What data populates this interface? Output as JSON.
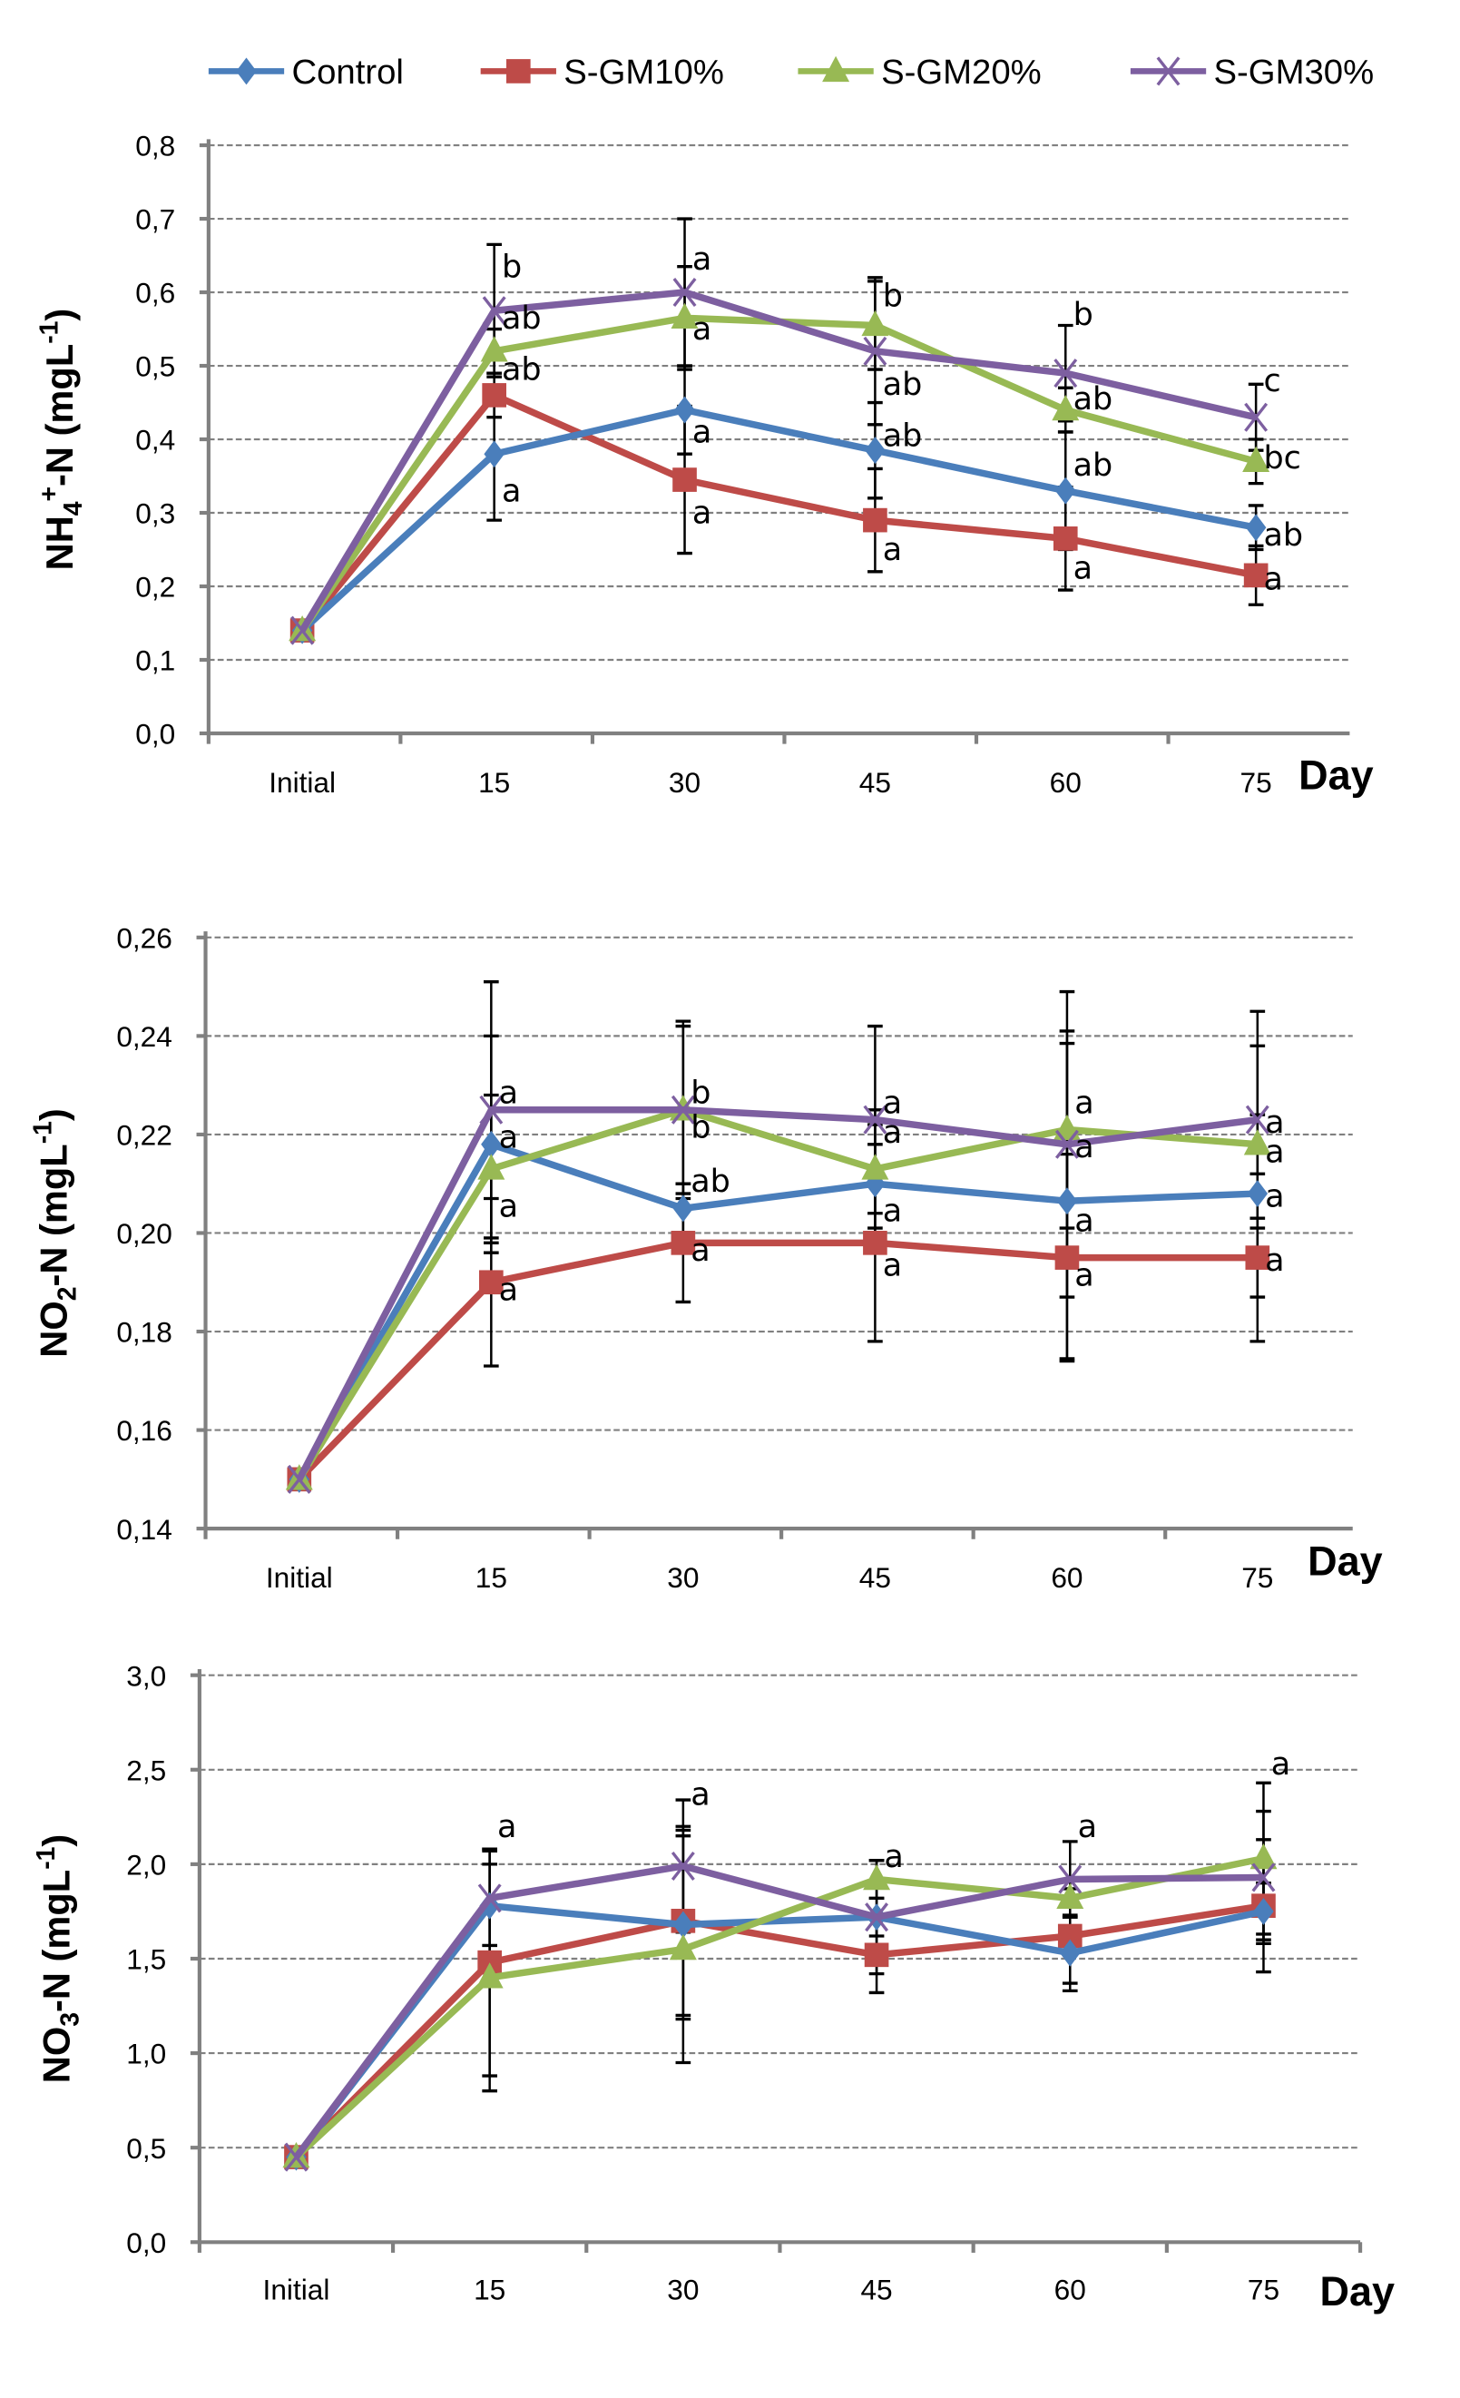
{
  "legend": {
    "placement": "top",
    "items": [
      "Control",
      "S-GM10%",
      "S-GM20%",
      "S-GM30%"
    ]
  },
  "colors": {
    "Control": "#4a7ebb",
    "S-GM10%": "#be4b48",
    "S-GM20%": "#98b954",
    "S-GM30%": "#7d5fa0"
  },
  "markers": {
    "Control": "diamond",
    "S-GM10%": "square",
    "S-GM20%": "triangle",
    "S-GM30%": "x"
  },
  "chart_data": [
    {
      "type": "line",
      "ylabel": {
        "main": "NH",
        "sub": "4",
        "sup": "+",
        "rest": "-N (mgL",
        "unit_sup": "-1",
        "close": ")"
      },
      "xlabel": "Day",
      "categories": [
        "Initial",
        "15",
        "30",
        "45",
        "60",
        "75"
      ],
      "ylim": [
        0,
        0.8
      ],
      "ystep": 0.1,
      "ydecimals": 1,
      "grid": true,
      "series": [
        {
          "name": "Control",
          "values": [
            0.14,
            0.38,
            0.44,
            0.385,
            0.33,
            0.28
          ],
          "errors": [
            0,
            0.09,
            0.06,
            0.065,
            0.08,
            0.03
          ]
        },
        {
          "name": "S-GM10%",
          "values": [
            0.14,
            0.46,
            0.345,
            0.29,
            0.265,
            0.215
          ],
          "errors": [
            0,
            0.03,
            0.1,
            0.07,
            0.07,
            0.04
          ]
        },
        {
          "name": "S-GM20%",
          "values": [
            0.14,
            0.52,
            0.565,
            0.555,
            0.44,
            0.37
          ],
          "errors": [
            0,
            0.03,
            0.07,
            0.06,
            0.03,
            0.03
          ]
        },
        {
          "name": "S-GM30%",
          "values": [
            0.14,
            0.575,
            0.6,
            0.52,
            0.49,
            0.43
          ],
          "errors": [
            0,
            0.09,
            0.1,
            0.1,
            0.065,
            0.045
          ]
        }
      ],
      "annotations": [
        {
          "x": "15",
          "y": 0.635,
          "text": "b"
        },
        {
          "x": "15",
          "y": 0.565,
          "text": "ab"
        },
        {
          "x": "15",
          "y": 0.495,
          "text": "ab"
        },
        {
          "x": "15",
          "y": 0.33,
          "text": "a"
        },
        {
          "x": "30",
          "y": 0.645,
          "text": "a"
        },
        {
          "x": "30",
          "y": 0.55,
          "text": "a"
        },
        {
          "x": "30",
          "y": 0.41,
          "text": "a"
        },
        {
          "x": "30",
          "y": 0.3,
          "text": "a"
        },
        {
          "x": "45",
          "y": 0.595,
          "text": "b"
        },
        {
          "x": "45",
          "y": 0.475,
          "text": "ab"
        },
        {
          "x": "45",
          "y": 0.405,
          "text": "ab"
        },
        {
          "x": "45",
          "y": 0.25,
          "text": "a"
        },
        {
          "x": "60",
          "y": 0.57,
          "text": "b"
        },
        {
          "x": "60",
          "y": 0.455,
          "text": "ab"
        },
        {
          "x": "60",
          "y": 0.365,
          "text": "ab"
        },
        {
          "x": "60",
          "y": 0.225,
          "text": "a"
        },
        {
          "x": "75",
          "y": 0.48,
          "text": "c"
        },
        {
          "x": "75",
          "y": 0.375,
          "text": "bc"
        },
        {
          "x": "75",
          "y": 0.27,
          "text": "ab"
        },
        {
          "x": "75",
          "y": 0.21,
          "text": "a"
        }
      ]
    },
    {
      "type": "line",
      "ylabel": {
        "main": "NO",
        "sub": "2",
        "sup": "",
        "rest": "-N (mgL",
        "unit_sup": "-1",
        "close": ")"
      },
      "xlabel": "Day",
      "categories": [
        "Initial",
        "15",
        "30",
        "45",
        "60",
        "75"
      ],
      "ylim": [
        0.14,
        0.26
      ],
      "ystep": 0.02,
      "ydecimals": 2,
      "grid": true,
      "series": [
        {
          "name": "Control",
          "values": [
            0.15,
            0.218,
            0.205,
            0.21,
            0.2065,
            0.208
          ],
          "errors": [
            0,
            0.022,
            0.005,
            0.012,
            0.032,
            0.03
          ]
        },
        {
          "name": "S-GM10%",
          "values": [
            0.15,
            0.19,
            0.198,
            0.198,
            0.195,
            0.195
          ],
          "errors": [
            0,
            0.017,
            0.012,
            0.02,
            0.021,
            0.008
          ]
        },
        {
          "name": "S-GM20%",
          "values": [
            0.15,
            0.213,
            0.225,
            0.213,
            0.221,
            0.218
          ],
          "errors": [
            0,
            0.015,
            0.018,
            0.012,
            0.02,
            0.006
          ]
        },
        {
          "name": "S-GM30%",
          "values": [
            0.15,
            0.225,
            0.225,
            0.223,
            0.218,
            0.223
          ],
          "errors": [
            0,
            0.026,
            0.017,
            0.019,
            0.031,
            0.022
          ]
        }
      ],
      "annotations": [
        {
          "x": "15",
          "y": 0.2285,
          "text": "a"
        },
        {
          "x": "15",
          "y": 0.2195,
          "text": "a"
        },
        {
          "x": "15",
          "y": 0.2055,
          "text": "a"
        },
        {
          "x": "15",
          "y": 0.1885,
          "text": "a"
        },
        {
          "x": "30",
          "y": 0.2285,
          "text": "b"
        },
        {
          "x": "30",
          "y": 0.2215,
          "text": "b"
        },
        {
          "x": "30",
          "y": 0.2105,
          "text": "ab"
        },
        {
          "x": "30",
          "y": 0.1965,
          "text": "a"
        },
        {
          "x": "45",
          "y": 0.2265,
          "text": "a"
        },
        {
          "x": "45",
          "y": 0.2205,
          "text": "a"
        },
        {
          "x": "45",
          "y": 0.2045,
          "text": "a"
        },
        {
          "x": "45",
          "y": 0.1935,
          "text": "a"
        },
        {
          "x": "60",
          "y": 0.2265,
          "text": "a"
        },
        {
          "x": "60",
          "y": 0.2175,
          "text": "a"
        },
        {
          "x": "60",
          "y": 0.2025,
          "text": "a"
        },
        {
          "x": "60",
          "y": 0.1915,
          "text": "a"
        },
        {
          "x": "75",
          "y": 0.2225,
          "text": "a"
        },
        {
          "x": "75",
          "y": 0.2165,
          "text": "a"
        },
        {
          "x": "75",
          "y": 0.2075,
          "text": "a"
        },
        {
          "x": "75",
          "y": 0.1945,
          "text": "a"
        }
      ]
    },
    {
      "type": "line",
      "ylabel": {
        "main": "NO",
        "sub": "3",
        "sup": "",
        "rest": "-N (mgL",
        "unit_sup": "-1",
        "close": ")"
      },
      "xlabel": "Day",
      "categories": [
        "Initial",
        "15",
        "30",
        "45",
        "60",
        "75"
      ],
      "ylim": [
        0,
        3.0
      ],
      "ystep": 0.5,
      "ydecimals": 1,
      "grid": true,
      "series": [
        {
          "name": "Control",
          "values": [
            0.45,
            1.78,
            1.68,
            1.72,
            1.53,
            1.75
          ],
          "errors": [
            0,
            0.3,
            0.5,
            0.3,
            0.2,
            0.15
          ]
        },
        {
          "name": "S-GM10%",
          "values": [
            0.45,
            1.48,
            1.7,
            1.52,
            1.62,
            1.78
          ],
          "errors": [
            0,
            0.6,
            0.5,
            0.2,
            0.25,
            0.35
          ]
        },
        {
          "name": "S-GM20%",
          "values": [
            0.45,
            1.4,
            1.55,
            1.92,
            1.82,
            2.03
          ],
          "errors": [
            0,
            0.6,
            0.6,
            0.1,
            0.1,
            0.4
          ]
        },
        {
          "name": "S-GM30%",
          "values": [
            0.45,
            1.82,
            1.99,
            1.72,
            1.92,
            1.93
          ],
          "errors": [
            0,
            0.25,
            0.35,
            0.1,
            0.2,
            0.35
          ]
        }
      ],
      "annotations": [
        {
          "x": "15",
          "y": 2.2,
          "text": "a"
        },
        {
          "x": "30",
          "y": 2.37,
          "text": "a"
        },
        {
          "x": "45",
          "y": 2.04,
          "text": "a"
        },
        {
          "x": "60",
          "y": 2.2,
          "text": "a"
        },
        {
          "x": "75",
          "y": 2.53,
          "text": "a"
        }
      ]
    }
  ]
}
